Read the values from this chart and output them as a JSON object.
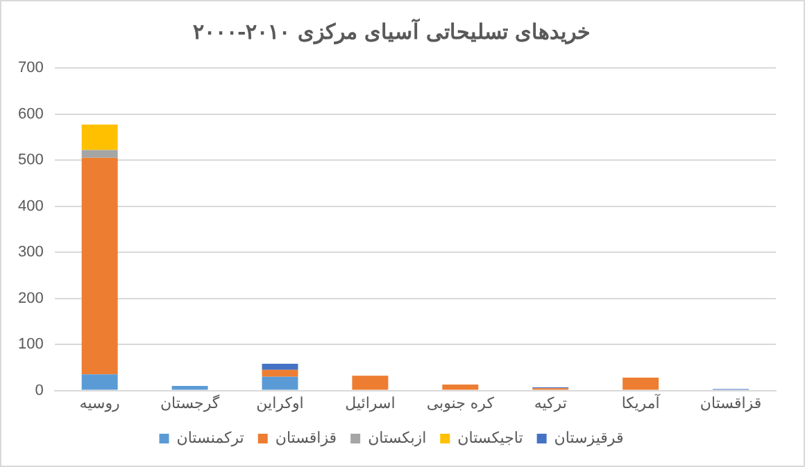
{
  "chart_data": {
    "type": "bar",
    "title": "خریدهای تسلیحاتی آسیای مرکزی ۲۰۱۰-۲۰۰۰",
    "categories": [
      "روسیه",
      "گرجستان",
      "اوکراین",
      "اسرائیل",
      "کره جنوبی",
      "ترکیه",
      "آمریکا",
      "قزاقستان"
    ],
    "stacked": true,
    "series": [
      {
        "name": "ترکمنستان",
        "color": "#5b9bd5",
        "values": [
          35,
          10,
          30,
          null,
          null,
          null,
          null,
          null
        ]
      },
      {
        "name": "قزاقستان",
        "color": "#ed7d31",
        "values": [
          470,
          null,
          15,
          32,
          13,
          5,
          28,
          null
        ]
      },
      {
        "name": "ازبکستان",
        "color": "#a5a5a5",
        "values": [
          17,
          null,
          null,
          null,
          null,
          null,
          null,
          null
        ]
      },
      {
        "name": "تاجیکستان",
        "color": "#ffc000",
        "values": [
          55,
          null,
          null,
          null,
          null,
          null,
          null,
          null
        ]
      },
      {
        "name": "قرقیزستان",
        "color": "#4472c4",
        "values": [
          null,
          null,
          13,
          null,
          null,
          2,
          null,
          3
        ]
      }
    ],
    "ylim": [
      0,
      700
    ],
    "yticks": [
      0,
      100,
      200,
      300,
      400,
      500,
      600,
      700
    ],
    "grid": "y",
    "legend": "bottom"
  }
}
